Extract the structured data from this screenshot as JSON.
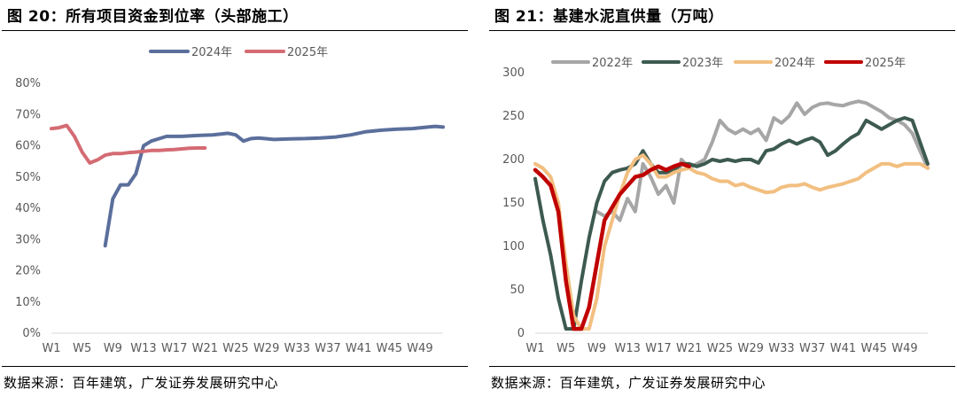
{
  "charts": [
    {
      "title": "图 20：所有项目资金到位率（头部施工）",
      "source": "数据来源：百年建筑，广发证券发展研究中心"
    },
    {
      "title": "图 21：基建水泥直供量（万吨）",
      "source": "数据来源：百年建筑，广发证券发展研究中心"
    }
  ],
  "chart_data": [
    {
      "type": "line",
      "title": "所有项目资金到位率（头部施工）",
      "xlabel": "",
      "ylabel": "",
      "y_format": "percent",
      "ylim": [
        0,
        80
      ],
      "y_ticks": [
        0,
        10,
        20,
        30,
        40,
        50,
        60,
        70,
        80
      ],
      "x_range": [
        1,
        52
      ],
      "x_ticks": [
        "W1",
        "W5",
        "W9",
        "W13",
        "W17",
        "W21",
        "W25",
        "W29",
        "W33",
        "W37",
        "W41",
        "W45",
        "W49"
      ],
      "legend_position": "top",
      "series": [
        {
          "name": "2024年",
          "color": "#5b6f9c",
          "x": [
            8,
            9,
            10,
            11,
            12,
            13,
            14,
            16,
            18,
            20,
            22,
            24,
            25,
            26,
            27,
            28,
            30,
            32,
            34,
            36,
            38,
            40,
            42,
            44,
            46,
            48,
            50,
            51,
            52
          ],
          "values": [
            28,
            43,
            47.5,
            47.5,
            51,
            60,
            61.5,
            63,
            63,
            63.3,
            63.5,
            64,
            63.5,
            61.5,
            62.3,
            62.5,
            62,
            62.2,
            62.3,
            62.5,
            62.8,
            63.5,
            64.5,
            65,
            65.3,
            65.5,
            66,
            66.2,
            66
          ]
        },
        {
          "name": "2025年",
          "color": "#d46b73",
          "x": [
            1,
            2,
            3,
            4,
            5,
            6,
            7,
            8,
            9,
            10,
            11,
            12,
            13,
            14,
            15,
            16,
            17,
            18,
            19,
            20,
            21
          ],
          "values": [
            65.5,
            65.8,
            66.5,
            63,
            58,
            54.5,
            55.5,
            57,
            57.5,
            57.5,
            57.8,
            58,
            58.2,
            58.5,
            58.5,
            58.7,
            58.8,
            59,
            59.2,
            59.3,
            59.3
          ]
        }
      ]
    },
    {
      "type": "line",
      "title": "基建水泥直供量（万吨）",
      "xlabel": "",
      "ylabel": "",
      "y_format": "number",
      "ylim": [
        0,
        300
      ],
      "y_ticks": [
        0,
        50,
        100,
        150,
        200,
        250,
        300
      ],
      "x_range": [
        1,
        52
      ],
      "x_ticks": [
        "W1",
        "W5",
        "W9",
        "W13",
        "W17",
        "W21",
        "W25",
        "W29",
        "W33",
        "W37",
        "W41",
        "W45",
        "W49"
      ],
      "legend_position": "top",
      "series": [
        {
          "name": "2022年",
          "color": "#a6a6a6",
          "x": [
            9,
            10,
            11,
            12,
            13,
            14,
            15,
            16,
            17,
            18,
            19,
            20,
            21,
            22,
            23,
            24,
            25,
            26,
            27,
            28,
            29,
            30,
            31,
            32,
            33,
            34,
            35,
            36,
            37,
            38,
            39,
            40,
            41,
            42,
            43,
            44,
            45,
            46,
            47,
            48,
            49,
            50,
            51,
            52
          ],
          "values": [
            140,
            135,
            140,
            130,
            155,
            140,
            195,
            180,
            160,
            170,
            150,
            200,
            190,
            195,
            200,
            220,
            245,
            235,
            230,
            235,
            230,
            235,
            222,
            248,
            242,
            250,
            265,
            252,
            260,
            264,
            265,
            263,
            262,
            265,
            267,
            265,
            260,
            255,
            248,
            245,
            240,
            230,
            210,
            190
          ]
        },
        {
          "name": "2023年",
          "color": "#3d5a50",
          "x": [
            1,
            2,
            3,
            4,
            5,
            6,
            7,
            8,
            9,
            10,
            11,
            12,
            13,
            14,
            15,
            16,
            17,
            18,
            19,
            20,
            21,
            22,
            23,
            24,
            25,
            26,
            27,
            28,
            29,
            30,
            31,
            32,
            33,
            34,
            35,
            36,
            37,
            38,
            39,
            40,
            41,
            42,
            43,
            44,
            45,
            46,
            47,
            48,
            49,
            50,
            51,
            52
          ],
          "values": [
            178,
            130,
            90,
            40,
            5,
            5,
            60,
            110,
            150,
            175,
            185,
            188,
            190,
            195,
            210,
            195,
            185,
            185,
            188,
            195,
            195,
            192,
            195,
            200,
            198,
            200,
            198,
            200,
            200,
            196,
            210,
            212,
            218,
            222,
            218,
            222,
            225,
            220,
            205,
            210,
            218,
            225,
            230,
            245,
            240,
            235,
            240,
            245,
            248,
            245,
            220,
            195
          ]
        },
        {
          "name": "2024年",
          "color": "#f2bf80",
          "x": [
            1,
            2,
            3,
            4,
            5,
            6,
            7,
            8,
            9,
            10,
            11,
            12,
            13,
            14,
            15,
            16,
            17,
            18,
            19,
            20,
            21,
            22,
            23,
            24,
            25,
            26,
            27,
            28,
            29,
            30,
            31,
            32,
            33,
            34,
            35,
            36,
            37,
            38,
            39,
            40,
            41,
            42,
            43,
            44,
            45,
            46,
            47,
            48,
            49,
            50,
            51,
            52
          ],
          "values": [
            195,
            190,
            180,
            150,
            80,
            20,
            5,
            5,
            40,
            100,
            130,
            160,
            185,
            200,
            205,
            195,
            180,
            180,
            185,
            188,
            190,
            185,
            183,
            178,
            175,
            175,
            170,
            172,
            168,
            165,
            162,
            163,
            168,
            170,
            170,
            172,
            168,
            165,
            168,
            170,
            172,
            175,
            178,
            185,
            190,
            195,
            195,
            192,
            195,
            195,
            195,
            190
          ]
        },
        {
          "name": "2025年",
          "color": "#c00000",
          "x": [
            1,
            2,
            3,
            4,
            5,
            6,
            7,
            8,
            9,
            10,
            11,
            12,
            13,
            14,
            15,
            16,
            17,
            18,
            19,
            20,
            21
          ],
          "values": [
            188,
            180,
            170,
            140,
            60,
            5,
            5,
            30,
            80,
            130,
            145,
            160,
            170,
            180,
            182,
            188,
            192,
            188,
            192,
            195,
            192
          ]
        }
      ]
    }
  ]
}
